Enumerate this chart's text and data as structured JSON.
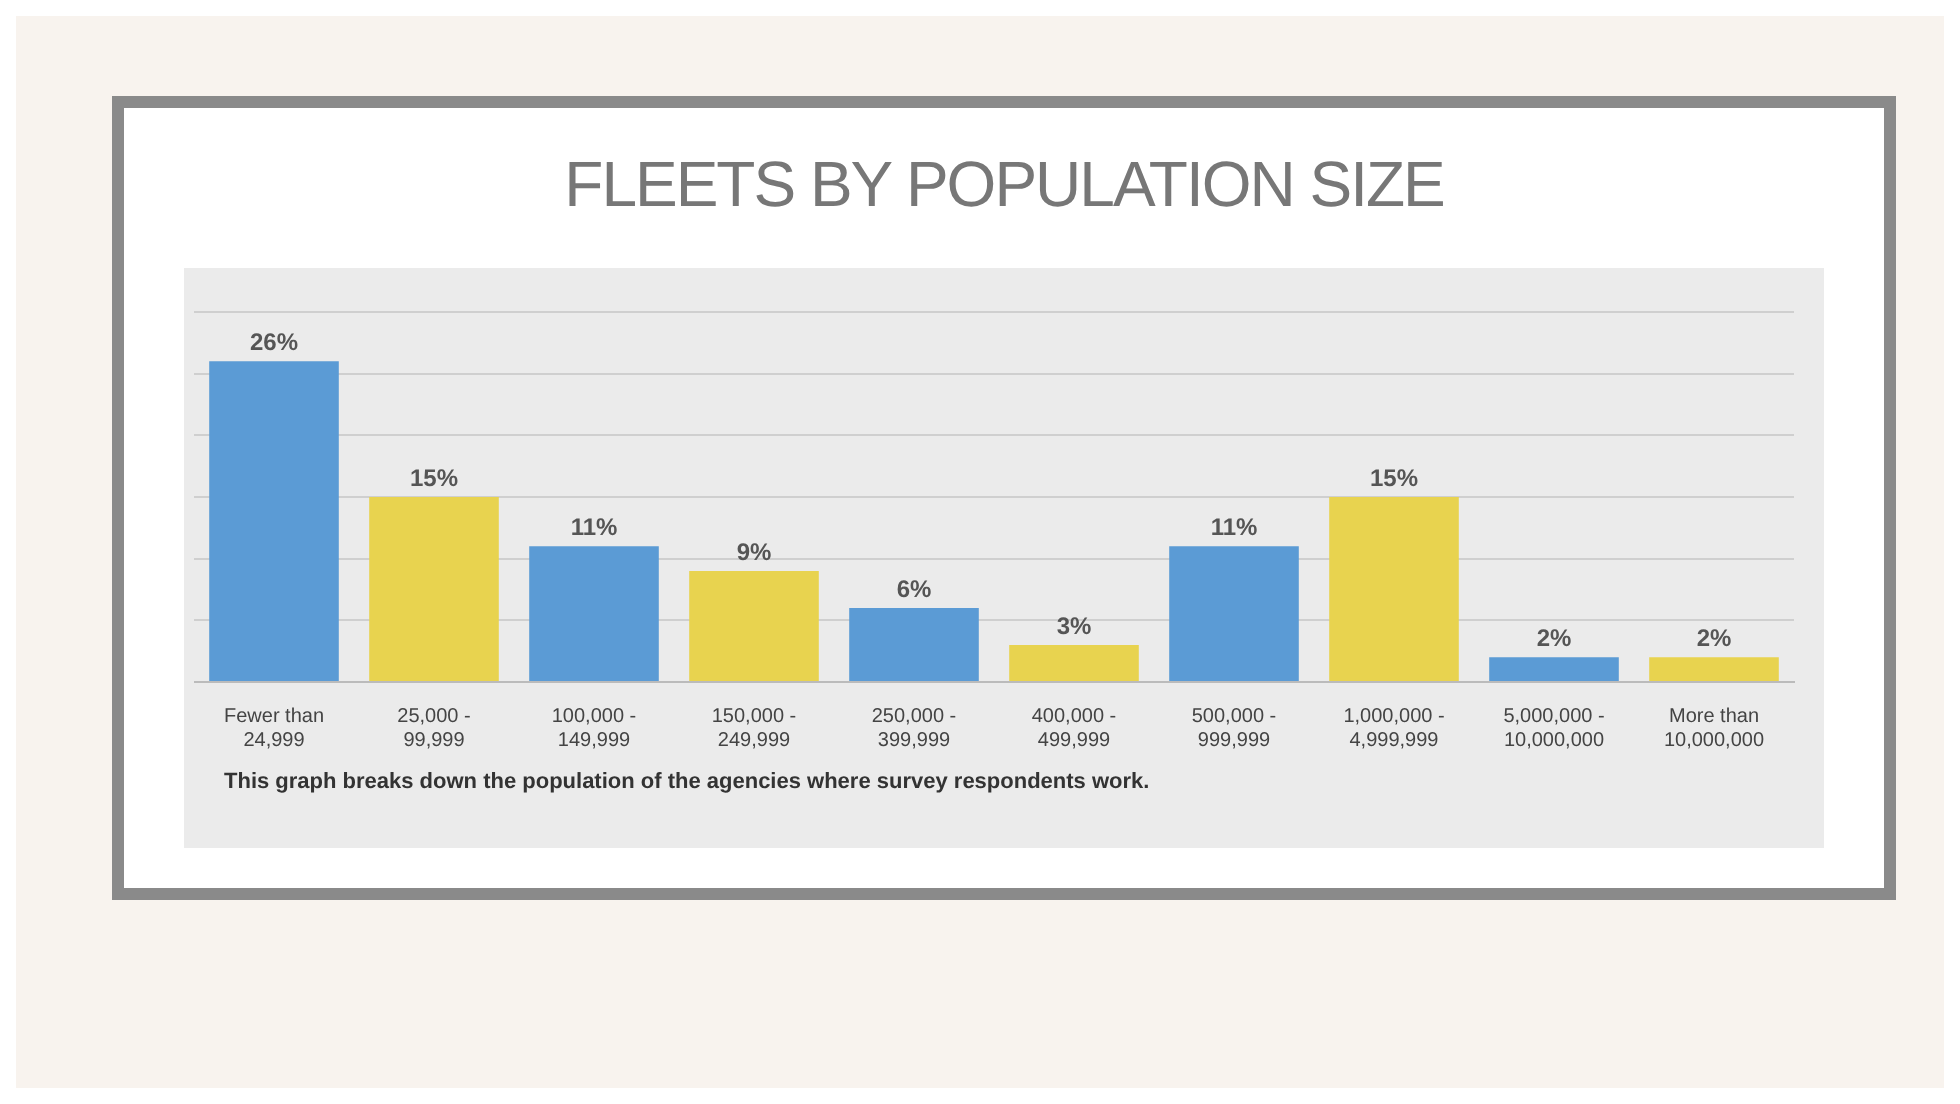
{
  "chart_data": {
    "type": "bar",
    "title": "FLEETS BY POPULATION SIZE",
    "categories": [
      "Fewer than 24,999",
      "25,000 - 99,999",
      "100,000 - 149,999",
      "150,000 - 249,999",
      "250,000 - 399,999",
      "400,000 - 499,999",
      "500,000 - 999,999",
      "1,000,000 - 4,999,999",
      "5,000,000 - 10,000,000",
      "More than 10,000,000"
    ],
    "values": [
      26,
      15,
      11,
      9,
      6,
      3,
      11,
      15,
      2,
      2
    ],
    "value_labels": [
      "26%",
      "15%",
      "11%",
      "9%",
      "6%",
      "3%",
      "11%",
      "15%",
      "2%",
      "2%"
    ],
    "colors": [
      "#5b9bd5",
      "#e8d34f",
      "#5b9bd5",
      "#e8d34f",
      "#5b9bd5",
      "#e8d34f",
      "#5b9bd5",
      "#e8d34f",
      "#5b9bd5",
      "#e8d34f"
    ],
    "ylim": [
      0,
      30
    ],
    "yticks": [
      {
        "value": 0,
        "label": null
      },
      {
        "value": 5,
        "label": null
      },
      {
        "value": 10,
        "label": null
      },
      {
        "value": 15,
        "label": null
      },
      {
        "value": 20,
        "label": null
      },
      {
        "value": 25,
        "label": null
      },
      {
        "value": 30,
        "label": null
      }
    ],
    "tick_labels": "x",
    "grid": "y",
    "annotations": [
      "This graph breaks down the population of the agencies where survey respondents work."
    ]
  }
}
